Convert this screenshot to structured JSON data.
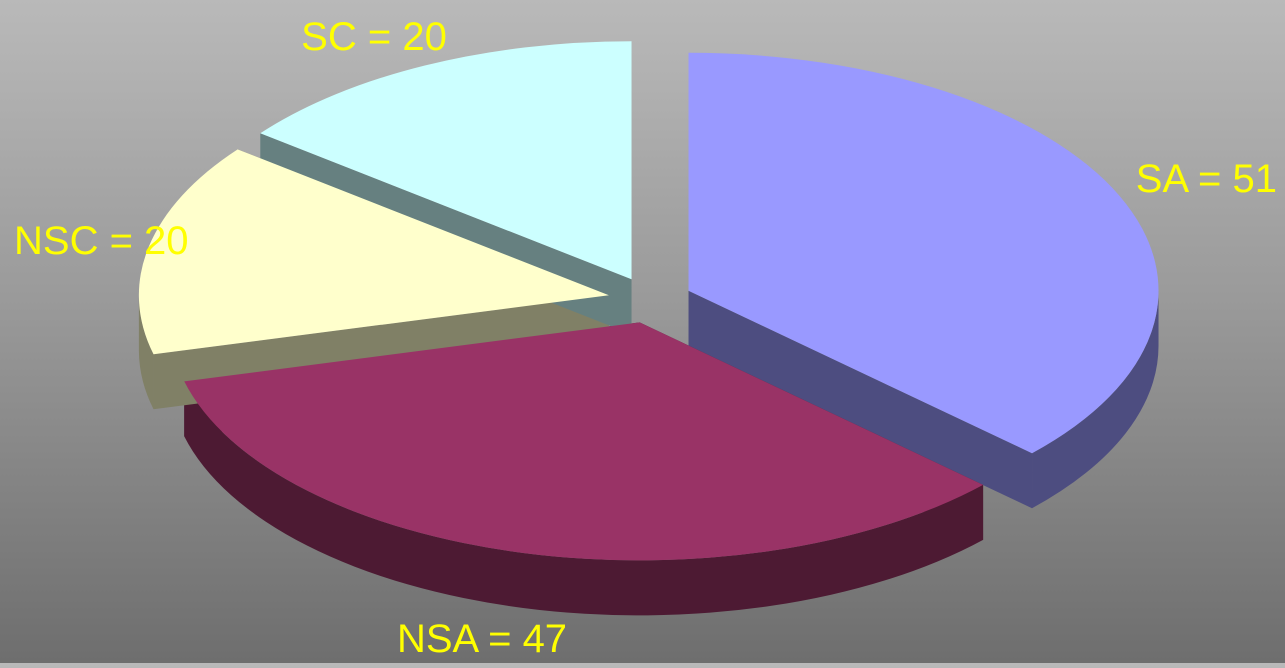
{
  "chart_data": {
    "type": "pie",
    "style": "3d-exploded",
    "slices": [
      {
        "label": "SA",
        "value": 51,
        "text": "SA =  51",
        "top_color": "#9999ff",
        "side_color": "#4d4d80"
      },
      {
        "label": "NSA",
        "value": 47,
        "text": "NSA = 47",
        "top_color": "#993366",
        "side_color": "#4d1a33"
      },
      {
        "label": "NSC",
        "value": 20,
        "text": "NSC = 20",
        "top_color": "#ffffcc",
        "side_color": "#808066"
      },
      {
        "label": "SC",
        "value": 20,
        "text": "SC = 20",
        "top_color": "#ccffff",
        "side_color": "#668080"
      }
    ],
    "label_color": "#ffff00"
  }
}
